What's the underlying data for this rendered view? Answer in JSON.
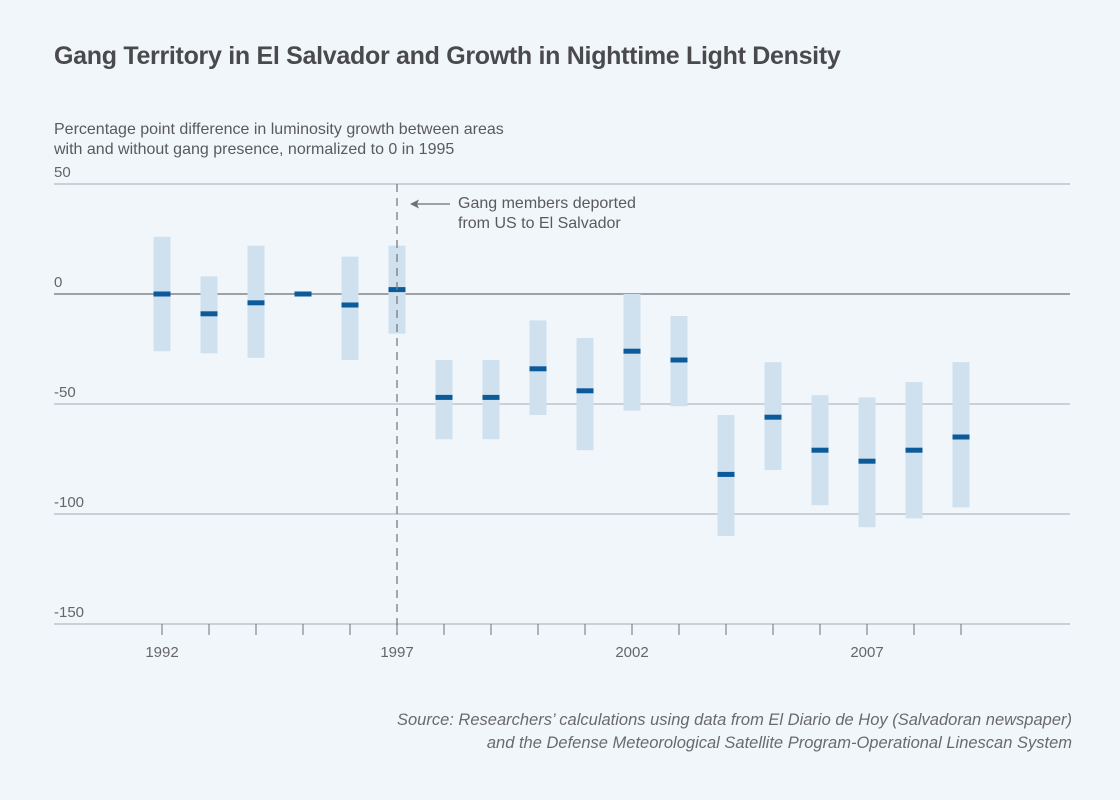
{
  "chart_data": {
    "type": "errorbar",
    "title": "Gang Territory in El Salvador and Growth in Nighttime Light Density",
    "ylabel_lines": [
      "Percentage point difference in luminosity growth between areas",
      "with and without gang presence, normalized to 0 in 1995"
    ],
    "xlabel": "",
    "ylim": [
      -150,
      50
    ],
    "yticks": [
      50,
      0,
      -50,
      -100,
      -150
    ],
    "xlim": [
      1988.7,
      2012.7
    ],
    "xtick_years": [
      1992,
      1993,
      1994,
      1995,
      1996,
      1997,
      1998,
      1999,
      2000,
      2001,
      2002,
      2003,
      2004,
      2005,
      2006,
      2007,
      2008,
      2009
    ],
    "xtick_labels": [
      1992,
      1997,
      2002,
      2007
    ],
    "grid": true,
    "zero_line": true,
    "points": [
      {
        "year": 1992,
        "estimate": 0,
        "lower": -26,
        "upper": 26
      },
      {
        "year": 1993,
        "estimate": -9,
        "lower": -27,
        "upper": 8
      },
      {
        "year": 1994,
        "estimate": -4,
        "lower": -29,
        "upper": 22
      },
      {
        "year": 1995,
        "estimate": 0,
        "lower": 0,
        "upper": 0
      },
      {
        "year": 1996,
        "estimate": -5,
        "lower": -30,
        "upper": 17
      },
      {
        "year": 1997,
        "estimate": 2,
        "lower": -18,
        "upper": 22
      },
      {
        "year": 1998,
        "estimate": -47,
        "lower": -66,
        "upper": -30
      },
      {
        "year": 1999,
        "estimate": -47,
        "lower": -66,
        "upper": -30
      },
      {
        "year": 2000,
        "estimate": -34,
        "lower": -55,
        "upper": -12
      },
      {
        "year": 2001,
        "estimate": -44,
        "lower": -71,
        "upper": -20
      },
      {
        "year": 2002,
        "estimate": -26,
        "lower": -53,
        "upper": 0
      },
      {
        "year": 2003,
        "estimate": -30,
        "lower": -51,
        "upper": -10
      },
      {
        "year": 2004,
        "estimate": -82,
        "lower": -110,
        "upper": -55
      },
      {
        "year": 2005,
        "estimate": -56,
        "lower": -80,
        "upper": -31
      },
      {
        "year": 2006,
        "estimate": -71,
        "lower": -96,
        "upper": -46
      },
      {
        "year": 2007,
        "estimate": -76,
        "lower": -106,
        "upper": -47
      },
      {
        "year": 2008,
        "estimate": -71,
        "lower": -102,
        "upper": -40
      },
      {
        "year": 2009,
        "estimate": -65,
        "lower": -97,
        "upper": -31
      }
    ],
    "annotation": {
      "year": 1997,
      "lines": [
        "Gang members deported",
        "from US to El Salvador"
      ]
    },
    "source_lines": [
      "Source: Researchers’ calculations using data from El Diario de Hoy (Salvadoran newspaper)",
      "and the Defense Meteorological Satellite Program-Operational Linescan System"
    ],
    "colors": {
      "background": "#f1f6fb",
      "interval": "#cfe0ee",
      "estimate": "#0b5a9a",
      "gridline": "#b4b9c0",
      "zeroline": "#6e7074",
      "text": "#4d4d4f"
    }
  }
}
